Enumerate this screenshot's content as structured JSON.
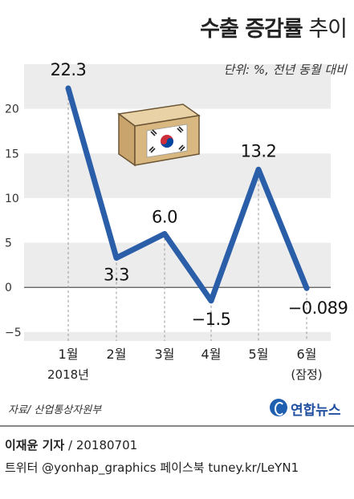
{
  "header": {
    "title_bold": "수출 증감률",
    "title_light": "추이",
    "unit": "단위: %, 전년 동월 대비"
  },
  "chart_data": {
    "type": "line",
    "categories": [
      "1월",
      "2월",
      "3월",
      "4월",
      "5월",
      "6월"
    ],
    "category_sublabels": [
      "2018년",
      "",
      "",
      "",
      "",
      "(잠정)"
    ],
    "values": [
      22.3,
      3.3,
      6.0,
      -1.5,
      13.2,
      -0.089
    ],
    "data_labels": [
      "22.3",
      "3.3",
      "6.0",
      "−1.5",
      "13.2",
      "−0.089"
    ],
    "ylim": [
      -6,
      25
    ],
    "yticks": [
      20,
      15,
      10,
      5,
      0,
      -5
    ],
    "ytick_labels": [
      "20",
      "15",
      "10",
      "5",
      "0",
      "−5"
    ],
    "title": "",
    "xlabel": "",
    "ylabel": "",
    "grid": "horizontal bands",
    "line_color": "#2a5ea8"
  },
  "footer": {
    "source": "자료/ 산업통상자원부",
    "logo": "연합뉴스",
    "reporter_name": "이재윤 기자",
    "reporter_date": " / 20180701",
    "social": "트위터 @yonhap_graphics  페이스북 tuney.kr/LeYN1"
  },
  "icons": {
    "export_box": "korea-flag-box-icon"
  }
}
